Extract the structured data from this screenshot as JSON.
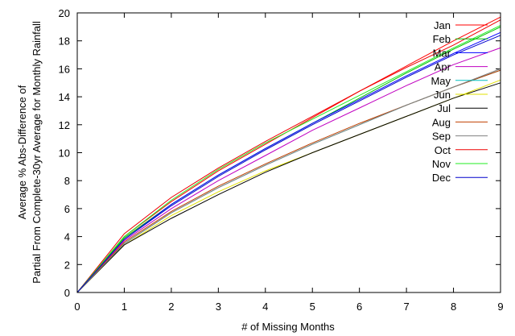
{
  "chart_data": {
    "type": "line",
    "xlabel": "# of Missing Months",
    "ylabel_lines": [
      "Average % Abs-Difference of",
      "Partial From Complete-30yr Average for Monthly Rainfall"
    ],
    "xlim": [
      0,
      9
    ],
    "ylim": [
      0,
      20
    ],
    "x_ticks": [
      "0",
      "1",
      "2",
      "3",
      "4",
      "5",
      "6",
      "7",
      "8",
      "9"
    ],
    "y_ticks": [
      "0",
      "2",
      "4",
      "6",
      "8",
      "10",
      "12",
      "14",
      "16",
      "18",
      "20"
    ],
    "grid": false,
    "legend_position": "top-right",
    "x": [
      0,
      1,
      2,
      3,
      4,
      5,
      6,
      7,
      8,
      9
    ],
    "series": [
      {
        "name": "Jan",
        "color": "#ff0000",
        "values": [
          0,
          4.0,
          6.5,
          8.7,
          10.6,
          12.5,
          14.4,
          16.2,
          18.0,
          19.7
        ]
      },
      {
        "name": "Feb",
        "color": "#00c000",
        "values": [
          0,
          3.9,
          6.3,
          8.4,
          10.3,
          12.1,
          13.9,
          15.7,
          17.4,
          19.0
        ]
      },
      {
        "name": "Mar",
        "color": "#0000ff",
        "values": [
          0,
          3.8,
          6.3,
          8.4,
          10.3,
          12.1,
          13.8,
          15.5,
          17.1,
          18.6
        ]
      },
      {
        "name": "Apr",
        "color": "#c000c0",
        "values": [
          0,
          3.7,
          6.0,
          8.0,
          9.8,
          11.6,
          13.2,
          14.8,
          16.3,
          17.5
        ]
      },
      {
        "name": "May",
        "color": "#00c0c0",
        "values": [
          0,
          3.5,
          5.7,
          7.5,
          9.1,
          10.6,
          12.0,
          13.4,
          14.7,
          15.9
        ]
      },
      {
        "name": "Jun",
        "color": "#e0e000",
        "values": [
          0,
          3.4,
          5.5,
          7.2,
          8.7,
          10.0,
          11.3,
          12.6,
          13.9,
          15.2
        ]
      },
      {
        "name": "Jul",
        "color": "#000000",
        "values": [
          0,
          3.4,
          5.3,
          7.0,
          8.6,
          10.0,
          11.3,
          12.6,
          13.9,
          15.0
        ]
      },
      {
        "name": "Aug",
        "color": "#c04000",
        "values": [
          0,
          3.6,
          5.8,
          7.6,
          9.2,
          10.7,
          12.1,
          13.4,
          14.7,
          15.9
        ]
      },
      {
        "name": "Sep",
        "color": "#808080",
        "values": [
          0,
          3.5,
          5.7,
          7.5,
          9.1,
          10.6,
          12.0,
          13.4,
          14.7,
          16.0
        ]
      },
      {
        "name": "Oct",
        "color": "#ee0000",
        "values": [
          0,
          4.2,
          6.8,
          8.9,
          10.8,
          12.6,
          14.4,
          16.1,
          17.7,
          19.5
        ]
      },
      {
        "name": "Nov",
        "color": "#22ee22",
        "values": [
          0,
          4.0,
          6.6,
          8.8,
          10.7,
          12.4,
          14.1,
          15.8,
          17.5,
          19.1
        ]
      },
      {
        "name": "Dec",
        "color": "#0000cc",
        "values": [
          0,
          3.8,
          6.2,
          8.3,
          10.2,
          12.0,
          13.7,
          15.4,
          17.0,
          18.4
        ]
      }
    ]
  }
}
